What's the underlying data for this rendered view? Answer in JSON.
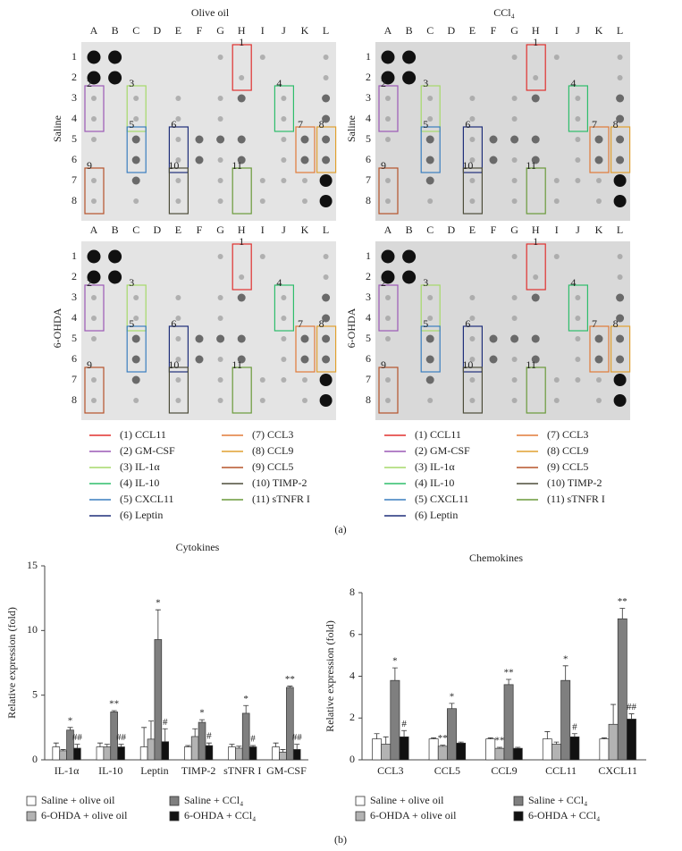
{
  "blots": {
    "conditions": [
      "Olive oil",
      "CCl₄"
    ],
    "treatments": [
      "Saline",
      "6-OHDA"
    ],
    "columns": [
      "A",
      "B",
      "C",
      "D",
      "E",
      "F",
      "G",
      "H",
      "I",
      "J",
      "K",
      "L"
    ],
    "rows": [
      "1",
      "2",
      "3",
      "4",
      "5",
      "6",
      "7",
      "8"
    ],
    "boxes": [
      {
        "number": "1",
        "label": "(1) CCL11",
        "color": "#e0312f"
      },
      {
        "number": "2",
        "label": "(2) GM-CSF",
        "color": "#9b59b6"
      },
      {
        "number": "3",
        "label": "(3) IL-1α",
        "color": "#a6d96a"
      },
      {
        "number": "4",
        "label": "(4) IL-10",
        "color": "#2ebd6b"
      },
      {
        "number": "5",
        "label": "(5) CXCL11",
        "color": "#3a7ebf"
      },
      {
        "number": "6",
        "label": "(6) Leptin",
        "color": "#1f2f7a"
      },
      {
        "number": "7",
        "label": "(7) CCL3",
        "color": "#e07b39"
      },
      {
        "number": "8",
        "label": "(8) CCL9",
        "color": "#e0a030"
      },
      {
        "number": "9",
        "label": "(9) CCL5",
        "color": "#b5532a"
      },
      {
        "number": "10",
        "label": "(10) TIMP-2",
        "color": "#4d4d3a"
      },
      {
        "number": "11",
        "label": "(11) sTNFR I",
        "color": "#6a9a3a"
      }
    ],
    "panel_label": "(a)"
  },
  "chart_data": [
    {
      "type": "bar",
      "title": "Cytokines",
      "ylabel": "Relative expression (fold)",
      "categories": [
        "IL-1α",
        "IL-10",
        "Leptin",
        "TIMP-2",
        "sTNFR I",
        "GM-CSF"
      ],
      "ylim": [
        0,
        15
      ],
      "yticks": [
        0,
        5,
        10,
        15
      ],
      "series": [
        {
          "name": "Saline + olive oil",
          "color": "#ffffff",
          "values": [
            1.0,
            1.0,
            1.0,
            1.0,
            1.0,
            1.0
          ],
          "errors": [
            0.3,
            0.3,
            1.5,
            0.1,
            0.2,
            0.3
          ],
          "marks": [
            null,
            null,
            null,
            null,
            null,
            null
          ]
        },
        {
          "name": "6-OHDA + olive oil",
          "color": "#b3b3b3",
          "values": [
            0.7,
            1.0,
            1.6,
            1.8,
            0.9,
            0.6
          ],
          "errors": [
            0.1,
            0.2,
            1.4,
            0.6,
            0.15,
            0.2
          ],
          "marks": [
            null,
            null,
            null,
            null,
            null,
            null
          ]
        },
        {
          "name": "Saline + CCl₄",
          "color": "#7f7f7f",
          "values": [
            2.3,
            3.7,
            9.3,
            2.9,
            3.6,
            5.6
          ],
          "errors": [
            0.2,
            0.1,
            2.3,
            0.2,
            0.6,
            0.1
          ],
          "marks": [
            "*",
            "**",
            "*",
            "*",
            "*",
            "**"
          ]
        },
        {
          "name": "6-OHDA + CCl₄",
          "color": "#111111",
          "values": [
            0.9,
            1.0,
            1.4,
            1.1,
            1.0,
            0.8
          ],
          "errors": [
            0.3,
            0.2,
            1.0,
            0.2,
            0.1,
            0.4
          ],
          "marks": [
            "##",
            "##",
            "#",
            "#",
            "#",
            "##"
          ]
        }
      ]
    },
    {
      "type": "bar",
      "title": "Chemokines",
      "ylabel": "Relative expression (fold)",
      "categories": [
        "CCL3",
        "CCL5",
        "CCL9",
        "CCL11",
        "CXCL11"
      ],
      "ylim": [
        0,
        8
      ],
      "yticks": [
        0,
        2,
        4,
        6,
        8
      ],
      "series": [
        {
          "name": "Saline + olive oil",
          "color": "#ffffff",
          "values": [
            1.0,
            1.0,
            1.0,
            1.0,
            1.0
          ],
          "errors": [
            0.25,
            0.05,
            0.05,
            0.35,
            0.05
          ],
          "marks": [
            null,
            null,
            null,
            null,
            null
          ]
        },
        {
          "name": "6-OHDA + olive oil",
          "color": "#b3b3b3",
          "values": [
            0.75,
            0.65,
            0.55,
            0.75,
            1.7
          ],
          "errors": [
            0.35,
            0.05,
            0.05,
            0.1,
            0.95
          ],
          "marks": [
            null,
            "**",
            "**",
            null,
            null
          ]
        },
        {
          "name": "Saline + CCl₄",
          "color": "#7f7f7f",
          "values": [
            3.8,
            2.45,
            3.6,
            3.8,
            6.75
          ],
          "errors": [
            0.6,
            0.25,
            0.25,
            0.7,
            0.5
          ],
          "marks": [
            "*",
            "*",
            "**",
            "*",
            "**"
          ]
        },
        {
          "name": "6-OHDA + CCl₄",
          "color": "#111111",
          "values": [
            1.1,
            0.8,
            0.55,
            1.1,
            1.95
          ],
          "errors": [
            0.3,
            0.05,
            0.05,
            0.15,
            0.25
          ],
          "marks": [
            "#",
            null,
            null,
            "#",
            "##"
          ]
        }
      ]
    }
  ],
  "panel_label_b": "(b)"
}
